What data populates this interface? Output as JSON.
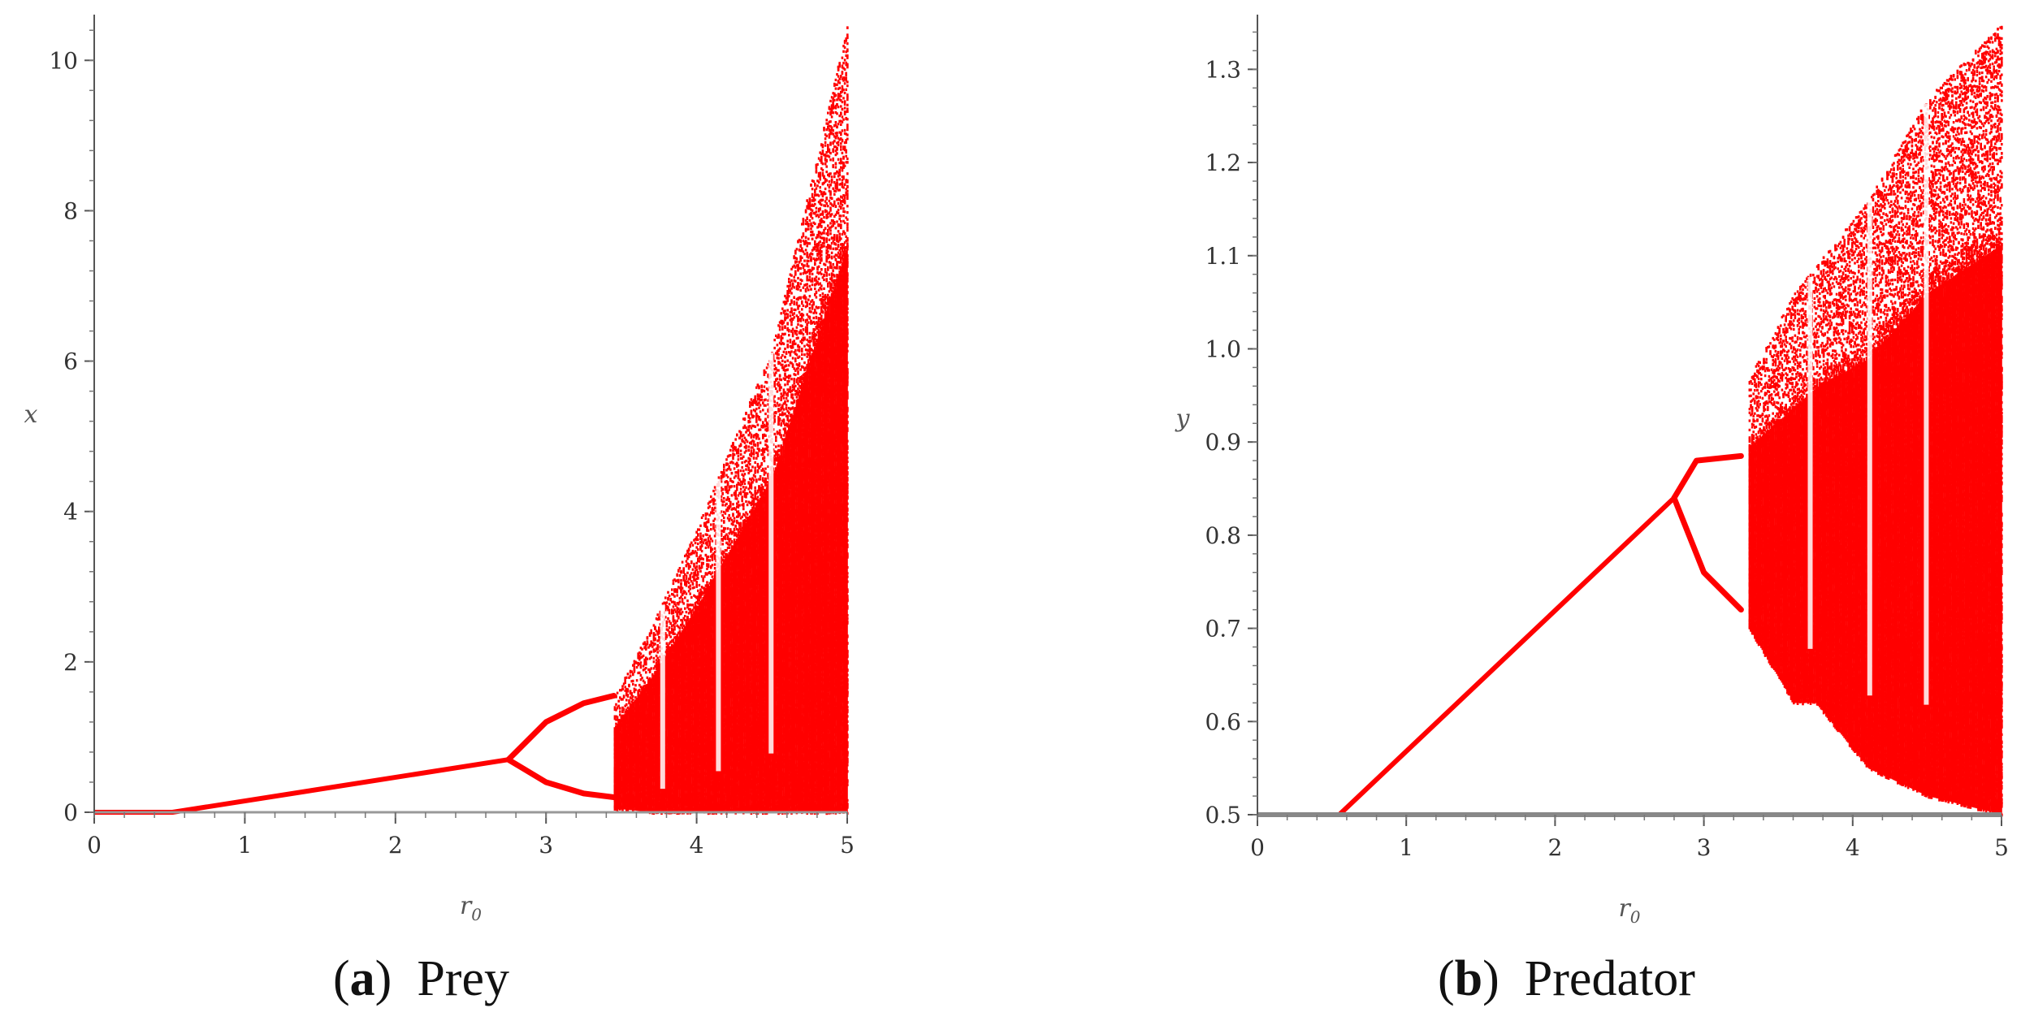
{
  "chart_data": [
    {
      "type": "scatter",
      "subtype": "bifurcation diagram",
      "panel_label": "a",
      "caption": "Prey",
      "xlabel": "r",
      "xlabel_subscript": "0",
      "ylabel": "x",
      "xlim": [
        0,
        5
      ],
      "ylim": [
        0,
        10.5
      ],
      "x_ticks": [
        "0",
        "1",
        "2",
        "3",
        "4",
        "5"
      ],
      "y_ticks": [
        "0",
        "2",
        "4",
        "6",
        "8",
        "10"
      ],
      "color": "#ff0000",
      "grid": false,
      "stable_branch": {
        "x": [
          0,
          0.52,
          2.75
        ],
        "y": [
          0,
          0,
          0.7
        ]
      },
      "period2": {
        "start": 2.75,
        "split": 3.45,
        "upper": [
          [
            2.75,
            0.7
          ],
          [
            3.0,
            1.2
          ],
          [
            3.25,
            1.45
          ],
          [
            3.45,
            1.55
          ]
        ],
        "lower": [
          [
            2.75,
            0.7
          ],
          [
            3.0,
            0.4
          ],
          [
            3.25,
            0.25
          ],
          [
            3.45,
            0.2
          ]
        ]
      },
      "chaos_envelope": {
        "x": [
          3.45,
          3.7,
          4.0,
          4.5,
          5.0
        ],
        "upper": [
          1.55,
          2.5,
          3.8,
          6.2,
          10.5
        ],
        "lower": [
          0.05,
          0.0,
          0.0,
          0.0,
          0.0
        ]
      },
      "windows": [
        3.78,
        4.15,
        4.5
      ]
    },
    {
      "type": "scatter",
      "subtype": "bifurcation diagram",
      "panel_label": "b",
      "caption": "Predator",
      "xlabel": "r",
      "xlabel_subscript": "0",
      "ylabel": "y",
      "xlim": [
        0,
        5
      ],
      "ylim": [
        0.5,
        1.35
      ],
      "x_ticks": [
        "0",
        "1",
        "2",
        "3",
        "4",
        "5"
      ],
      "y_ticks": [
        "0.5",
        "0.6",
        "0.7",
        "0.8",
        "0.9",
        "1.0",
        "1.1",
        "1.2",
        "1.3"
      ],
      "color": "#ff0000",
      "grid": false,
      "stable_branch": {
        "x": [
          0,
          0.55,
          2.8
        ],
        "y": [
          0.5,
          0.5,
          0.84
        ]
      },
      "period2": {
        "upper": [
          [
            2.8,
            0.84
          ],
          [
            2.95,
            0.88
          ],
          [
            3.25,
            0.885
          ]
        ],
        "lower": [
          [
            2.8,
            0.84
          ],
          [
            3.0,
            0.76
          ],
          [
            3.25,
            0.72
          ]
        ]
      },
      "chaos_envelope": {
        "x": [
          3.3,
          3.6,
          3.75,
          4.1,
          4.5,
          5.0
        ],
        "upper": [
          0.97,
          1.06,
          1.09,
          1.16,
          1.27,
          1.35
        ],
        "lower": [
          0.7,
          0.62,
          0.62,
          0.55,
          0.52,
          0.5
        ]
      },
      "windows": [
        3.72,
        4.12,
        4.5
      ]
    }
  ]
}
